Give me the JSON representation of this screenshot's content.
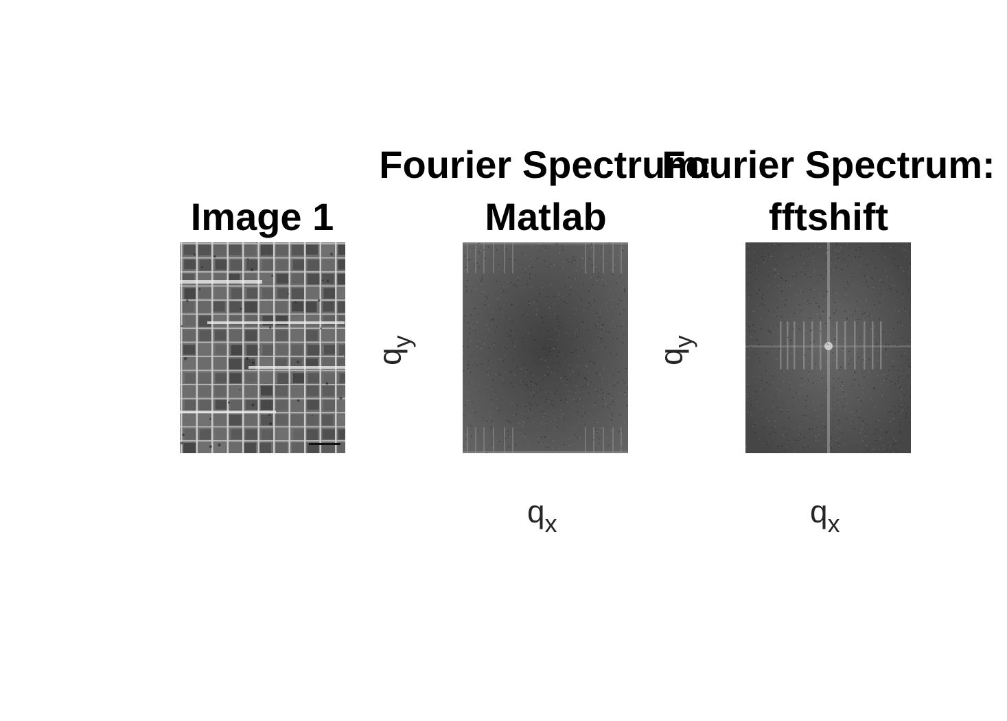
{
  "panels": [
    {
      "title_line1": "Image 1",
      "title_line2": ""
    },
    {
      "title_line1": "Fourier Spectrum:",
      "title_line2": "Matlab",
      "xlabel_base": "q",
      "xlabel_sub": "x",
      "ylabel_base": "q",
      "ylabel_sub": "y"
    },
    {
      "title_line1": "Fourier Spectrum:",
      "title_line2": "fftshift",
      "xlabel_base": "q",
      "xlabel_sub": "x",
      "ylabel_base": "q",
      "ylabel_sub": "y"
    }
  ],
  "colors": {
    "title": "#000000",
    "axis_label": "#262626",
    "spectrum_bg": "#4f4f4f",
    "micrograph_bg": "#6e6e6e"
  }
}
